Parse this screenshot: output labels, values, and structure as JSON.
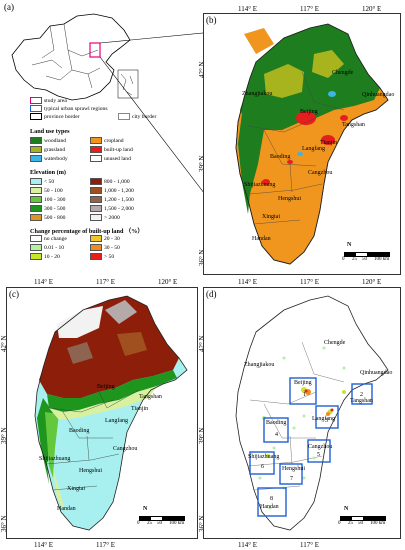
{
  "panels": {
    "a": {
      "label": "(a)",
      "legend": [
        {
          "label": "study area",
          "color": "#e6007e"
        },
        {
          "label": "typical urban sprawl regions",
          "color": "#1f5fd6"
        },
        {
          "label": "province border",
          "color": "#000000"
        },
        {
          "label": "city border",
          "color": "#888888"
        }
      ]
    },
    "b": {
      "label": "(b)",
      "top_ticks": [
        "114° E",
        "117° E",
        "120° E"
      ],
      "side_ticks": [
        "42° N",
        "39° N",
        "36° N"
      ],
      "cities": [
        "Zhangjiakou",
        "Chengde",
        "Qinhuangdao",
        "Beijing",
        "Tangshan",
        "Tianjin",
        "Langfang",
        "Baoding",
        "Cangzhou",
        "Shijiazhuang",
        "Hengshui",
        "Xingtai",
        "Handan"
      ],
      "scale": [
        "0",
        "25",
        "50",
        "100 km"
      ],
      "north": "N"
    },
    "c": {
      "label": "(c)",
      "top_ticks": [
        "114° E",
        "117° E",
        "120° E"
      ],
      "side_ticks": [
        "42° N",
        "39° N",
        "36° N"
      ],
      "bottom_ticks": [
        "114° E",
        "117° E"
      ],
      "cities": [
        "Beijing",
        "Tangshan",
        "Tianjin",
        "Langfang",
        "Baoding",
        "Cangzhou",
        "Shijiazhuang",
        "Hengshui",
        "Xingtai",
        "Handan"
      ],
      "scale": [
        "0",
        "25",
        "50",
        "100 km"
      ],
      "north": "N"
    },
    "d": {
      "label": "(d)",
      "top_ticks": [
        "114° E",
        "117° E",
        "120° E"
      ],
      "side_ticks": [
        "42° N",
        "39° N",
        "36° N"
      ],
      "bottom_ticks": [
        "114° E",
        "117° E"
      ],
      "cities": [
        "Chengde",
        "Zhangjiakou",
        "Beijing",
        "Qinhuangdao",
        "Tangshan",
        "Baoding",
        "Langfang",
        "Cangzhou",
        "Shijiazhuang",
        "Hengshui",
        "Handan"
      ],
      "box_numbers": [
        "1",
        "2",
        "3",
        "4",
        "5",
        "6",
        "7",
        "8"
      ],
      "scale": [
        "0",
        "25",
        "50",
        "100 km"
      ],
      "north": "N"
    }
  },
  "legend": {
    "land_use": {
      "title": "Land use types",
      "items": [
        {
          "label": "woodland",
          "color": "#1e7d1e"
        },
        {
          "label": "cropland",
          "color": "#f0961e"
        },
        {
          "label": "grassland",
          "color": "#a8b41e"
        },
        {
          "label": "built-up land",
          "color": "#e61e1e"
        },
        {
          "label": "waterbody",
          "color": "#3cb4e6"
        },
        {
          "label": "unused land",
          "color": "#ffffff"
        }
      ]
    },
    "elevation": {
      "title": "Elevation (m)",
      "items": [
        {
          "label": "< 50",
          "color": "#a8f0ef"
        },
        {
          "label": "800 - 1,000",
          "color": "#8c1e0a"
        },
        {
          "label": "50 - 100",
          "color": "#d8f0a0"
        },
        {
          "label": "1,000 - 1,200",
          "color": "#a0501e"
        },
        {
          "label": "100 - 300",
          "color": "#64c83c"
        },
        {
          "label": "1,200 - 1,500",
          "color": "#8c6450"
        },
        {
          "label": "300 - 500",
          "color": "#1e961e"
        },
        {
          "label": "1,500 - 2,000",
          "color": "#b4aaaa"
        },
        {
          "label": "500 - 800",
          "color": "#e0961e"
        },
        {
          "label": "> 2000",
          "color": "#f2f2f2"
        }
      ]
    },
    "change": {
      "title": "Change percentage of built-up land （%）",
      "items": [
        {
          "label": "no change",
          "color": "#ffffff"
        },
        {
          "label": "20 - 30",
          "color": "#f0c828"
        },
        {
          "label": "0.01 - 10",
          "color": "#b4f0a0"
        },
        {
          "label": "30 - 50",
          "color": "#f08c1e"
        },
        {
          "label": "10 - 20",
          "color": "#c8e628"
        },
        {
          "label": "> 50",
          "color": "#e61e1e"
        }
      ]
    }
  }
}
